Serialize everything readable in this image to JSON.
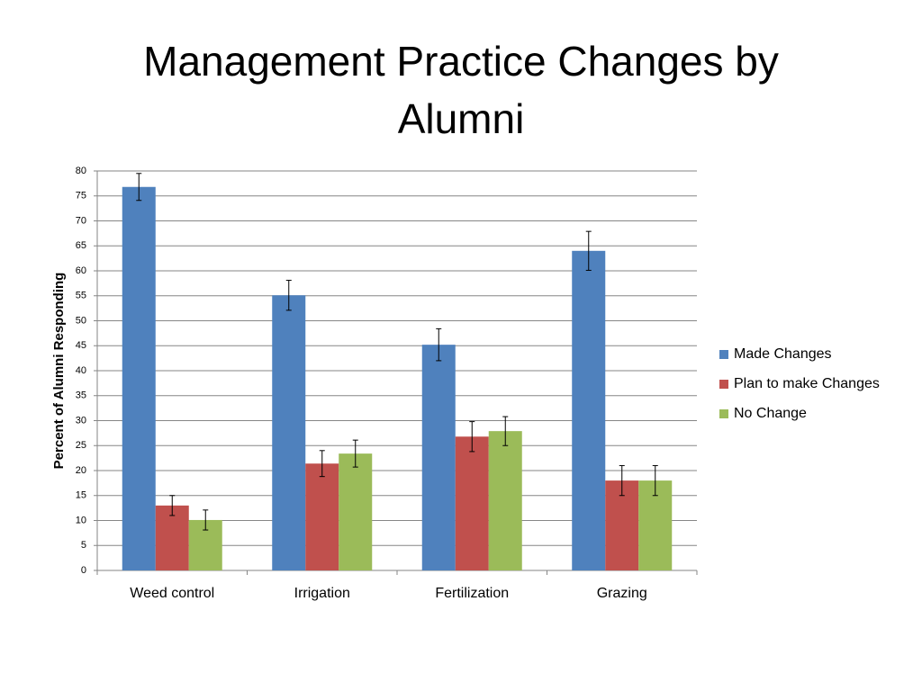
{
  "chart_data": {
    "type": "bar",
    "title": "Management Practice Changes by Alumni",
    "y_label": "Percent of Alumni Responding",
    "categories": [
      "Weed control",
      "Irrigation",
      "Fertilization",
      "Grazing"
    ],
    "series": [
      {
        "name": "Made Changes",
        "color": "#4f81bd",
        "values": [
          76.8,
          55.1,
          45.2,
          64
        ],
        "errors": [
          2.7,
          3,
          3.2,
          3.9
        ]
      },
      {
        "name": "Plan to make Changes",
        "color": "#c0504d",
        "values": [
          13,
          21.4,
          26.8,
          18
        ],
        "errors": [
          2,
          2.6,
          3,
          3
        ]
      },
      {
        "name": "No Change",
        "color": "#9bbb59",
        "values": [
          10.1,
          23.4,
          27.9,
          18
        ],
        "errors": [
          2,
          2.7,
          2.9,
          3
        ]
      }
    ],
    "ylim": [
      0,
      80
    ],
    "yticks": [
      0,
      5,
      10,
      15,
      20,
      25,
      30,
      35,
      40,
      45,
      50,
      55,
      60,
      65,
      70,
      75,
      80
    ],
    "grid": true,
    "legend": "right"
  }
}
